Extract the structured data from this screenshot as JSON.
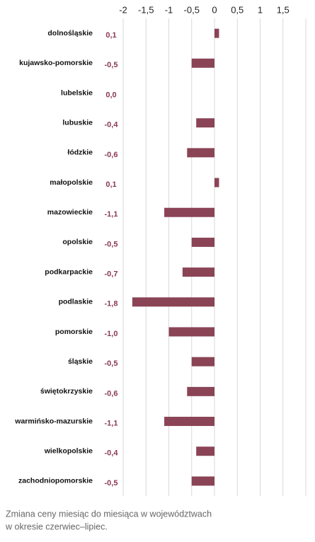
{
  "chart_data": {
    "type": "bar",
    "orientation": "horizontal",
    "categories": [
      "dolnośląskie",
      "kujawsko-pomorskie",
      "lubelskie",
      "lubuskie",
      "łódzkie",
      "małopolskie",
      "mazowieckie",
      "opolskie",
      "podkarpackie",
      "podlaskie",
      "pomorskie",
      "śląskie",
      "świętokrzyskie",
      "warmińsko-mazurskie",
      "wielkopolskie",
      "zachodniopomorskie"
    ],
    "values": [
      0.1,
      -0.5,
      0.0,
      -0.4,
      -0.6,
      0.1,
      -1.1,
      -0.5,
      -0.7,
      -1.8,
      -1.0,
      -0.5,
      -0.6,
      -1.1,
      -0.4,
      -0.5
    ],
    "value_labels": [
      "0,1",
      "-0,5",
      "0,0",
      "-0,4",
      "-0,6",
      "0,1",
      "-1,1",
      "-0,5",
      "-0,7",
      "-1,8",
      "-1,0",
      "-0,5",
      "-0,6",
      "-1,1",
      "-0,4",
      "-0,5"
    ],
    "color": "#8a4456",
    "xlim": [
      -2,
      2
    ],
    "xticks": [
      -2,
      {
        "value": -1.5,
        "label": "-1,5"
      },
      -1,
      {
        "value": -0.5,
        "label": "-0,5"
      },
      0,
      {
        "value": 0.5,
        "label": "0,5"
      },
      1,
      {
        "value": 1.5,
        "label": "1,5"
      }
    ],
    "grid": true,
    "caption": [
      "Zmiana ceny miesiąc do miesiąca w województwach",
      "w okresie czerwiec–lipiec."
    ]
  }
}
